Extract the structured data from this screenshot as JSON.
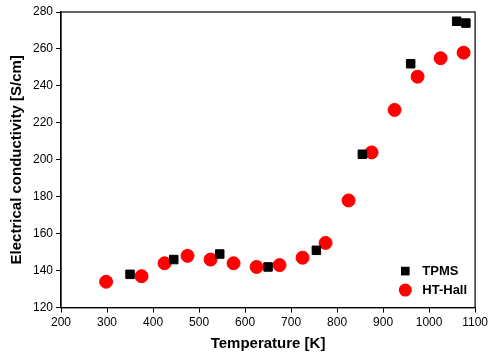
{
  "chart_data": {
    "type": "scatter",
    "x_label": "Temperature [K]",
    "y_label": "Electrical conductivity [S/cm]",
    "xlim": [
      200,
      1100
    ],
    "xticks": [
      200,
      300,
      400,
      500,
      600,
      700,
      800,
      900,
      1000,
      1100
    ],
    "ylim": [
      120,
      280
    ],
    "yticks": [
      120,
      140,
      160,
      180,
      200,
      220,
      240,
      260,
      280
    ],
    "grid": false,
    "legend": "lower right",
    "series": [
      {
        "name": "TPMS",
        "color": "#000000",
        "marker": "square",
        "x": [
          350,
          445,
          545,
          650,
          755,
          855,
          960,
          1060,
          1080
        ],
        "values": [
          138,
          146,
          149,
          142,
          151,
          203,
          252,
          275,
          274
        ]
      },
      {
        "name": "HT-Hall",
        "color": "#ff0000",
        "marker": "circle",
        "x": [
          298,
          375,
          425,
          475,
          525,
          575,
          625,
          675,
          725,
          775,
          825,
          875,
          925,
          975,
          1025,
          1075
        ],
        "values": [
          134,
          137,
          144,
          148,
          146,
          144,
          142,
          143,
          147,
          155,
          178,
          204,
          227,
          245,
          255,
          258
        ]
      }
    ]
  }
}
